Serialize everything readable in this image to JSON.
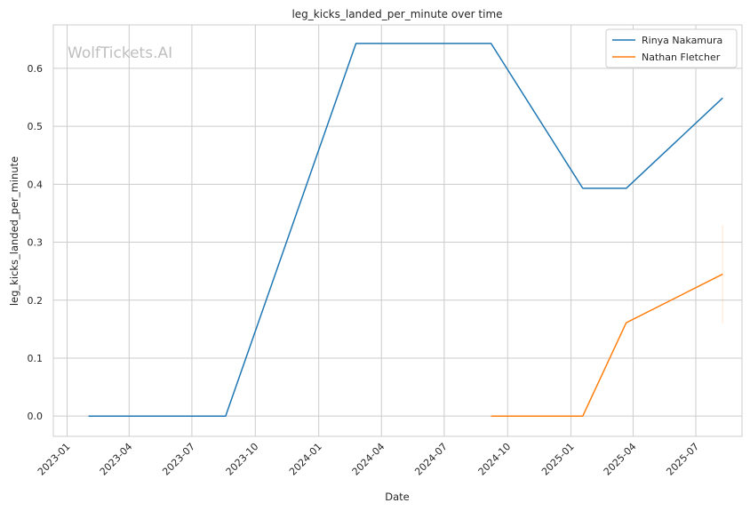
{
  "chart_data": {
    "type": "line",
    "title": "leg_kicks_landed_per_minute over time",
    "xlabel": "Date",
    "ylabel": "leg_kicks_landed_per_minute",
    "watermark": "WolfTickets.AI",
    "x_ticks": [
      "2023-01",
      "2023-04",
      "2023-07",
      "2023-10",
      "2024-01",
      "2024-04",
      "2024-07",
      "2024-10",
      "2025-01",
      "2025-04",
      "2025-07"
    ],
    "y_ticks": [
      "0.0",
      "0.1",
      "0.2",
      "0.3",
      "0.4",
      "0.5",
      "0.6"
    ],
    "xlim": [
      "2022-12-12",
      "2025-09-06"
    ],
    "ylim": [
      -0.035,
      0.675
    ],
    "grid": true,
    "legend": "top-right",
    "series": [
      {
        "name": "Rinya Nakamura",
        "color": "#1f77b4",
        "points": [
          {
            "x": "2023-02-01",
            "y": 0.0
          },
          {
            "x": "2023-08-19",
            "y": 0.0
          },
          {
            "x": "2024-02-24",
            "y": 0.643
          },
          {
            "x": "2024-09-07",
            "y": 0.643
          },
          {
            "x": "2025-01-18",
            "y": 0.393
          },
          {
            "x": "2025-03-22",
            "y": 0.393
          },
          {
            "x": "2025-08-09",
            "y": 0.549
          }
        ]
      },
      {
        "name": "Nathan Fletcher",
        "color": "#ff7f0e",
        "points": [
          {
            "x": "2024-09-07",
            "y": 0.0
          },
          {
            "x": "2025-01-18",
            "y": 0.0
          },
          {
            "x": "2025-03-22",
            "y": 0.161
          },
          {
            "x": "2025-08-09",
            "y": 0.245
          }
        ],
        "error_range": {
          "x": "2025-08-09",
          "low": 0.16,
          "high": 0.33
        }
      }
    ]
  }
}
